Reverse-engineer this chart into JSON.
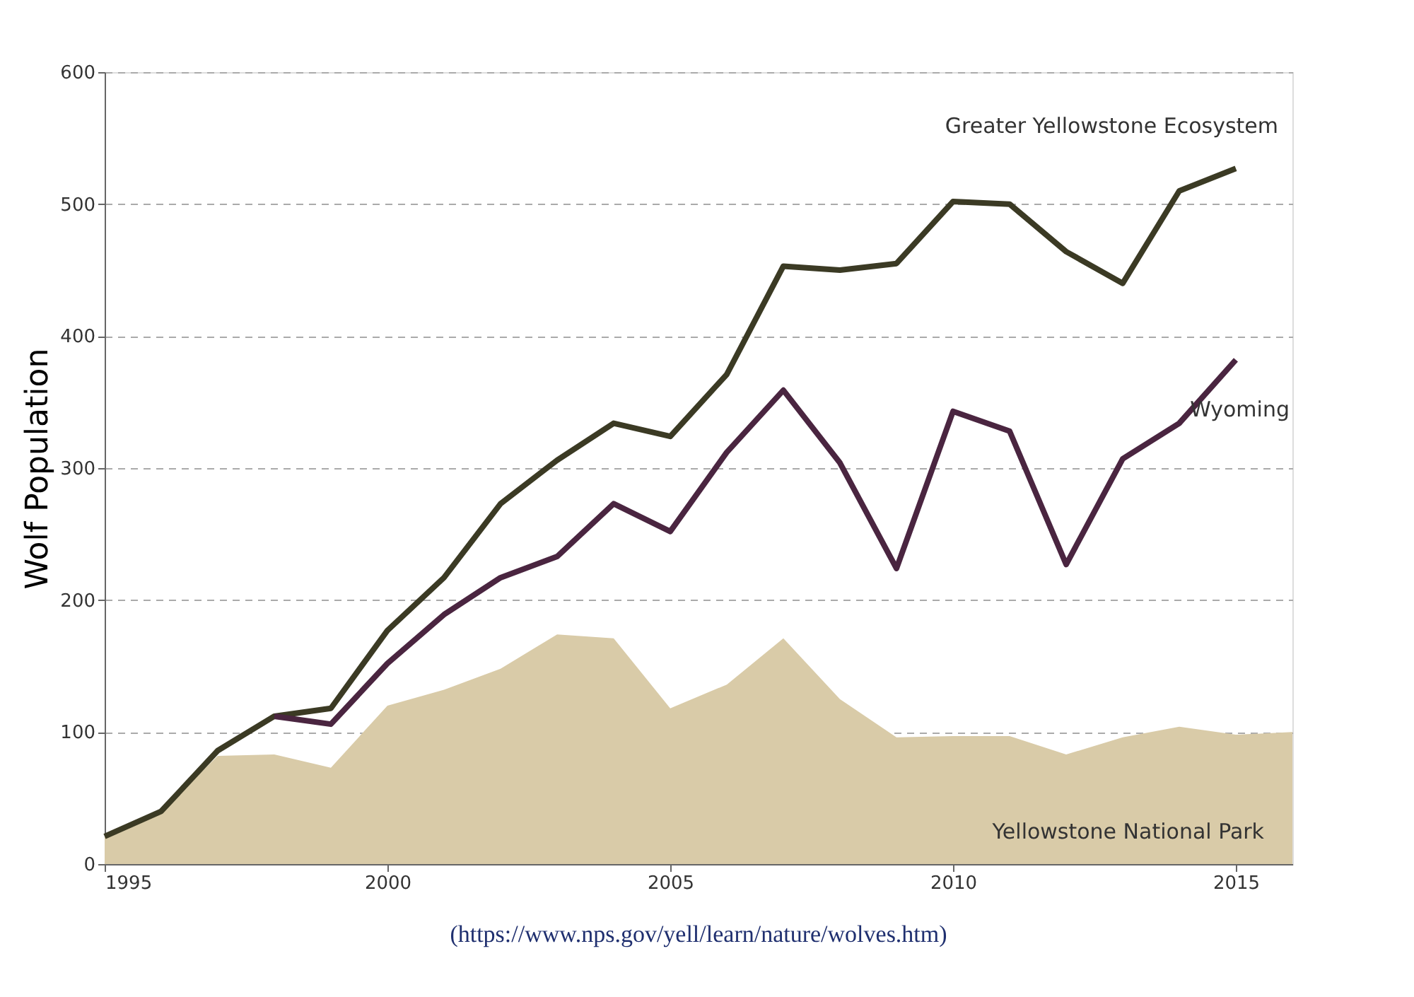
{
  "chart_data": {
    "type": "line",
    "ylabel": "Wolf Population",
    "xlim": [
      1995,
      2016
    ],
    "xticks": [
      1995,
      2000,
      2005,
      2010,
      2015
    ],
    "ylim": [
      0,
      600
    ],
    "yticks": [
      0,
      100,
      200,
      300,
      400,
      500,
      600
    ],
    "grid": "y",
    "line_style": "solid",
    "marker": "none",
    "legend": false,
    "annotations": [
      "(https://www.nps.gov/yell/learn/nature/wolves.htm)"
    ],
    "series": [
      {
        "name": "Yellowstone National Park",
        "type": "area",
        "color": "#d9cba8",
        "x": [
          1995,
          1996,
          1997,
          1998,
          1999,
          2000,
          2001,
          2002,
          2003,
          2004,
          2005,
          2006,
          2007,
          2008,
          2009,
          2010,
          2011,
          2012,
          2013,
          2014,
          2015,
          2016
        ],
        "values": [
          21,
          40,
          82,
          83,
          73,
          120,
          132,
          148,
          174,
          171,
          118,
          136,
          171,
          125,
          96,
          97,
          97,
          83,
          96,
          104,
          98,
          100
        ]
      },
      {
        "name": "Greater Yellowstone Ecosystem",
        "type": "line",
        "color": "#3b3a24",
        "x": [
          1995,
          1996,
          1997,
          1998,
          1999,
          2000,
          2001,
          2002,
          2003,
          2004,
          2005,
          2006,
          2007,
          2008,
          2009,
          2010,
          2011,
          2012,
          2013,
          2014,
          2015
        ],
        "values": [
          21,
          40,
          86,
          112,
          118,
          177,
          217,
          273,
          306,
          334,
          324,
          371,
          453,
          450,
          455,
          502,
          500,
          464,
          440,
          510,
          527
        ]
      },
      {
        "name": "Wyoming",
        "type": "line",
        "color": "#4a2540",
        "x": [
          1998,
          1999,
          2000,
          2001,
          2002,
          2003,
          2004,
          2005,
          2006,
          2007,
          2008,
          2009,
          2010,
          2011,
          2012,
          2013,
          2014,
          2015
        ],
        "values": [
          112,
          106,
          152,
          189,
          217,
          233,
          273,
          252,
          312,
          359,
          304,
          224,
          343,
          328,
          227,
          307,
          334,
          382
        ]
      }
    ]
  }
}
